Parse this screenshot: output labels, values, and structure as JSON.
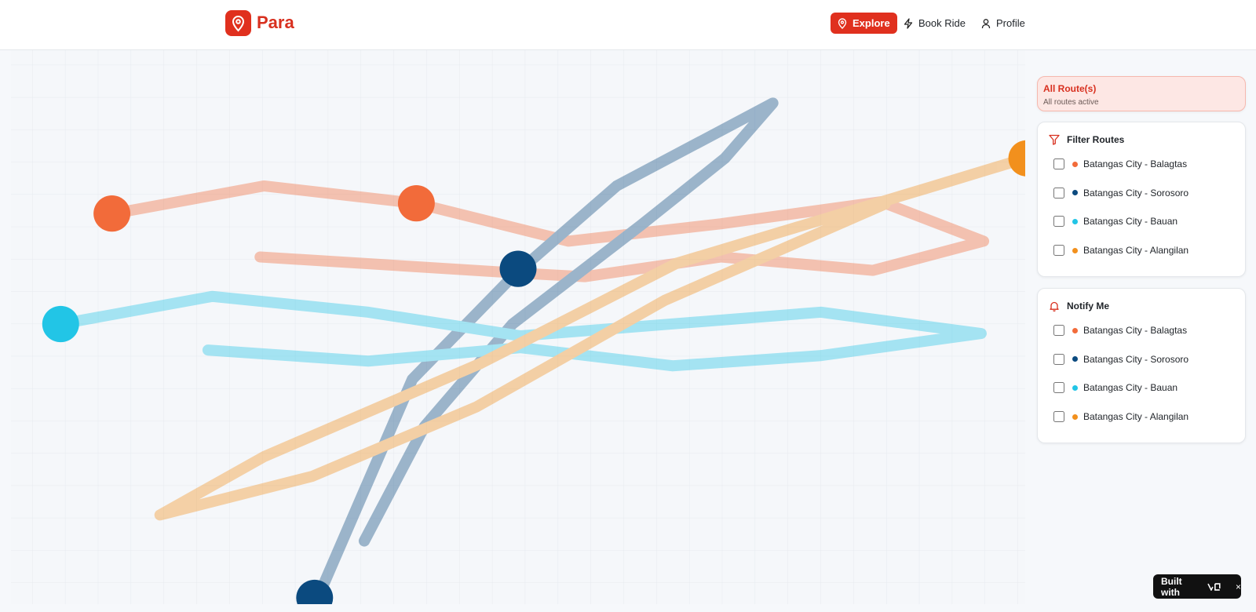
{
  "header": {
    "brand": "Para",
    "nav": [
      "Explore",
      "Book Ride",
      "Profile"
    ]
  },
  "status": {
    "title": "All Route(s)",
    "subtitle": "All routes active"
  },
  "filter": {
    "title": "Filter Routes"
  },
  "notify": {
    "title": "Notify Me"
  },
  "routes": [
    {
      "name": "Batangas City - Balagtas",
      "color": "#f26b3a"
    },
    {
      "name": "Batangas City - Sorosoro",
      "color": "#0b4a7f"
    },
    {
      "name": "Batangas City - Bauan",
      "color": "#22c5e6"
    },
    {
      "name": "Batangas City - Alangilan",
      "color": "#f2901d"
    }
  ],
  "badge": {
    "text": "Built with"
  }
}
